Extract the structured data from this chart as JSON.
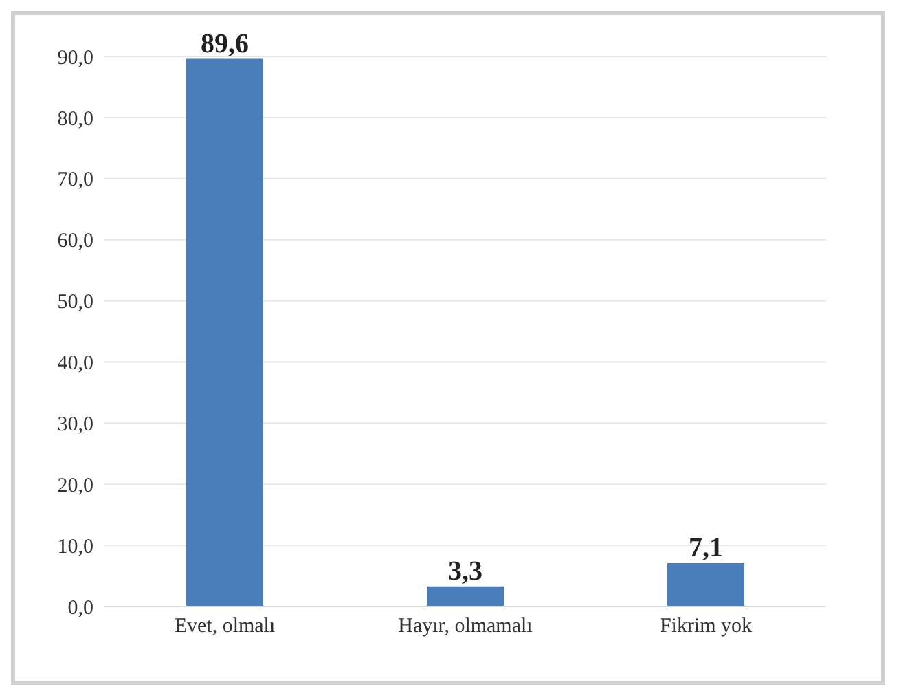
{
  "chart_data": {
    "type": "bar",
    "categories": [
      "Evet, olmalı",
      "Hayır, olmamalı",
      "Fikrim yok"
    ],
    "values": [
      89.6,
      3.3,
      7.1
    ],
    "value_labels": [
      "89,6",
      "3,3",
      "7,1"
    ],
    "color": "#4a7ebb",
    "ylim": [
      0,
      90
    ],
    "yticks": [
      {
        "value": 0,
        "label": "0,0"
      },
      {
        "value": 10,
        "label": "10,0"
      },
      {
        "value": 20,
        "label": "20,0"
      },
      {
        "value": 30,
        "label": "30,0"
      },
      {
        "value": 40,
        "label": "40,0"
      },
      {
        "value": 50,
        "label": "50,0"
      },
      {
        "value": 60,
        "label": "60,0"
      },
      {
        "value": 70,
        "label": "70,0"
      },
      {
        "value": 80,
        "label": "80,0"
      },
      {
        "value": 90,
        "label": "90,0"
      }
    ],
    "grid": "y",
    "legend": false
  }
}
